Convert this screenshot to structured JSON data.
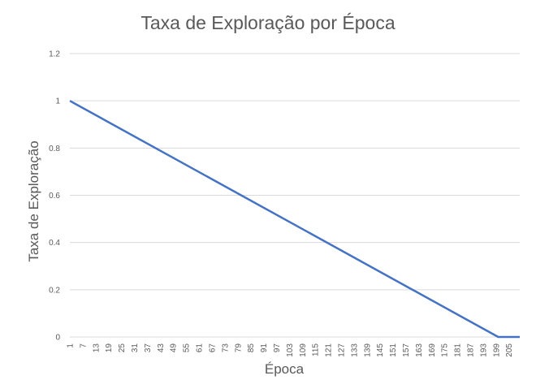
{
  "chart_data": {
    "type": "line",
    "title": "Taxa de Exploração por Época",
    "xlabel": "Época",
    "ylabel": "Taxa de Exploração",
    "ylim": [
      0,
      1.2
    ],
    "y_ticks": [
      "0",
      "0.2",
      "0.4",
      "0.6",
      "0.8",
      "1",
      "1.2"
    ],
    "x_tick_labels": [
      "1",
      "7",
      "13",
      "19",
      "25",
      "31",
      "37",
      "43",
      "49",
      "55",
      "61",
      "67",
      "73",
      "79",
      "85",
      "91",
      "97",
      "103",
      "109",
      "115",
      "121",
      "127",
      "133",
      "139",
      "145",
      "151",
      "157",
      "163",
      "169",
      "175",
      "181",
      "187",
      "193",
      "199",
      "205"
    ],
    "x_range": [
      1,
      210
    ],
    "grid": true,
    "legend": "none",
    "series_color": "#4472c4",
    "series": [
      {
        "x": [
          1,
          200,
          210
        ],
        "values": [
          1.0,
          0.0,
          0.0
        ]
      }
    ]
  }
}
